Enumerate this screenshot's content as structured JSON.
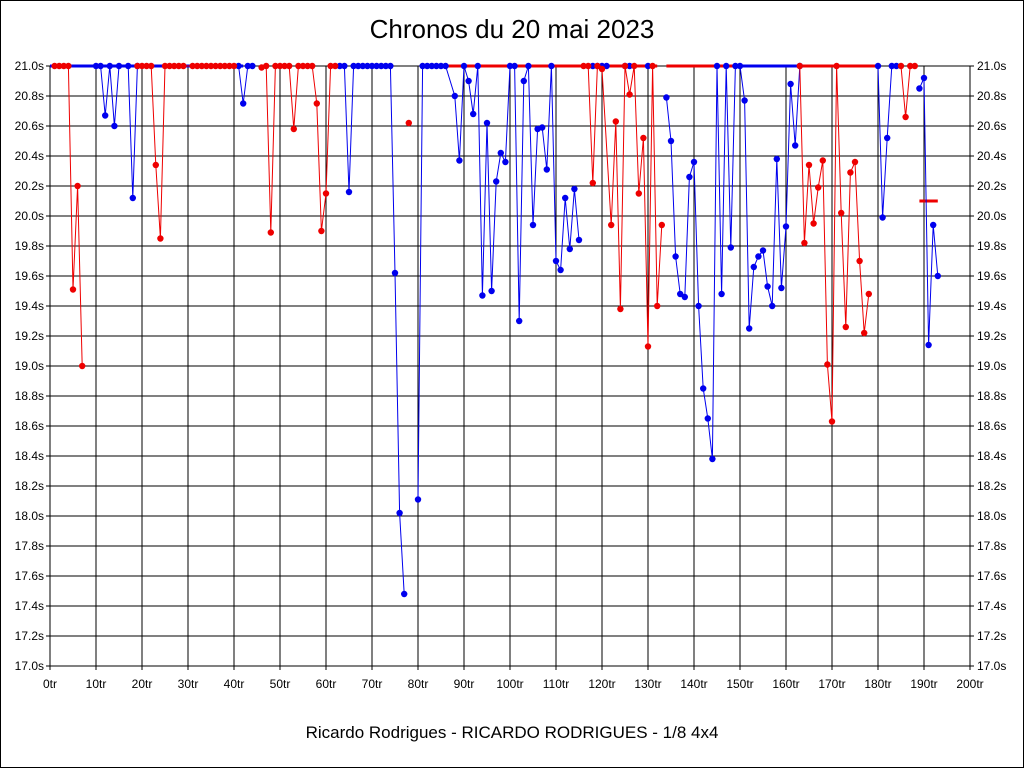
{
  "chart_data": {
    "type": "line",
    "title": "Chronos du 20 mai 2023",
    "subtitle": "Ricardo Rodrigues - RICARDO RODRIGUES - 1/8 4x4",
    "xlabel": "",
    "ylabel": "",
    "xlim": [
      0,
      200
    ],
    "ylim": [
      17.0,
      21.0
    ],
    "grid": true,
    "x_ticks": [
      "0tr",
      "10tr",
      "20tr",
      "30tr",
      "40tr",
      "50tr",
      "60tr",
      "70tr",
      "80tr",
      "90tr",
      "100tr",
      "110tr",
      "120tr",
      "130tr",
      "140tr",
      "150tr",
      "160tr",
      "170tr",
      "180tr",
      "190tr",
      "200tr"
    ],
    "y_ticks": [
      "21.0s",
      "20.8s",
      "20.6s",
      "20.4s",
      "20.2s",
      "20.0s",
      "19.8s",
      "19.6s",
      "19.4s",
      "19.2s",
      "19.0s",
      "18.8s",
      "18.6s",
      "18.4s",
      "18.2s",
      "18.0s",
      "17.8s",
      "17.6s",
      "17.4s",
      "17.2s",
      "17.0s"
    ],
    "colors": {
      "series_a": "#0000ee",
      "series_b": "#ee0000"
    },
    "series": [
      {
        "color": "#0000ee",
        "points": [
          [
            10,
            21.0
          ],
          [
            11,
            21.0
          ],
          [
            12,
            20.67
          ],
          [
            13,
            21.0
          ],
          [
            14,
            20.6
          ],
          [
            15,
            21.0
          ],
          [
            17,
            21.0
          ],
          [
            18,
            20.12
          ],
          [
            19,
            21.0
          ],
          [
            41,
            21.0
          ],
          [
            42,
            20.75
          ],
          [
            43,
            21.0
          ],
          [
            44,
            21.0
          ],
          [
            63,
            21.0
          ],
          [
            64,
            21.0
          ],
          [
            65,
            20.16
          ],
          [
            66,
            21.0
          ],
          [
            67,
            21.0
          ],
          [
            68,
            21.0
          ],
          [
            69,
            21.0
          ],
          [
            70,
            21.0
          ],
          [
            71,
            21.0
          ],
          [
            72,
            21.0
          ],
          [
            73,
            21.0
          ],
          [
            74,
            21.0
          ],
          [
            75,
            19.62
          ],
          [
            76,
            18.02
          ],
          [
            77,
            17.48
          ],
          [
            80,
            18.11
          ],
          [
            81,
            21.0
          ],
          [
            82,
            21.0
          ],
          [
            83,
            21.0
          ],
          [
            84,
            21.0
          ],
          [
            85,
            21.0
          ],
          [
            86,
            21.0
          ],
          [
            88,
            20.8
          ],
          [
            89,
            20.37
          ],
          [
            90,
            21.0
          ],
          [
            91,
            20.9
          ],
          [
            92,
            20.68
          ],
          [
            93,
            21.0
          ],
          [
            94,
            19.47
          ],
          [
            95,
            20.62
          ],
          [
            96,
            19.5
          ],
          [
            97,
            20.23
          ],
          [
            98,
            20.42
          ],
          [
            99,
            20.36
          ],
          [
            100,
            21.0
          ],
          [
            101,
            21.0
          ],
          [
            102,
            19.3
          ],
          [
            103,
            20.9
          ],
          [
            104,
            21.0
          ],
          [
            105,
            19.94
          ],
          [
            106,
            20.58
          ],
          [
            107,
            20.59
          ],
          [
            108,
            20.31
          ],
          [
            109,
            21.0
          ],
          [
            110,
            19.7
          ],
          [
            111,
            19.64
          ],
          [
            112,
            20.12
          ],
          [
            113,
            19.78
          ],
          [
            114,
            20.18
          ],
          [
            115,
            19.84
          ],
          [
            118,
            21.0
          ],
          [
            119,
            21.0
          ],
          [
            120,
            21.0
          ],
          [
            121,
            21.0
          ],
          [
            125,
            21.0
          ],
          [
            126,
            21.0
          ],
          [
            130,
            21.0
          ],
          [
            134,
            20.79
          ],
          [
            135,
            20.5
          ],
          [
            136,
            19.73
          ],
          [
            137,
            19.48
          ],
          [
            138,
            19.46
          ],
          [
            139,
            20.26
          ],
          [
            140,
            20.36
          ],
          [
            141,
            19.4
          ],
          [
            142,
            18.85
          ],
          [
            143,
            18.65
          ],
          [
            144,
            18.38
          ],
          [
            145,
            21.0
          ],
          [
            146,
            19.48
          ],
          [
            147,
            21.0
          ],
          [
            148,
            19.79
          ],
          [
            149,
            21.0
          ],
          [
            150,
            21.0
          ],
          [
            151,
            20.77
          ],
          [
            152,
            19.25
          ],
          [
            153,
            19.66
          ],
          [
            154,
            19.73
          ],
          [
            155,
            19.77
          ],
          [
            156,
            19.53
          ],
          [
            157,
            19.4
          ],
          [
            158,
            20.38
          ],
          [
            159,
            19.52
          ],
          [
            160,
            19.93
          ],
          [
            161,
            20.88
          ],
          [
            162,
            20.47
          ],
          [
            163,
            21.0
          ],
          [
            180,
            21.0
          ],
          [
            181,
            19.99
          ],
          [
            182,
            20.52
          ],
          [
            183,
            21.0
          ],
          [
            184,
            21.0
          ],
          [
            189,
            20.85
          ],
          [
            190,
            20.92
          ],
          [
            191,
            19.14
          ],
          [
            192,
            19.94
          ],
          [
            193,
            19.6
          ]
        ]
      },
      {
        "color": "#ee0000",
        "points": [
          [
            1,
            21.0
          ],
          [
            2,
            21.0
          ],
          [
            3,
            21.0
          ],
          [
            4,
            21.0
          ],
          [
            5,
            19.51
          ],
          [
            6,
            20.2
          ],
          [
            7,
            19.0
          ],
          [
            19,
            21.0
          ],
          [
            20,
            21.0
          ],
          [
            21,
            21.0
          ],
          [
            22,
            21.0
          ],
          [
            23,
            20.34
          ],
          [
            24,
            19.85
          ],
          [
            25,
            21.0
          ],
          [
            26,
            21.0
          ],
          [
            27,
            21.0
          ],
          [
            28,
            21.0
          ],
          [
            29,
            21.0
          ],
          [
            31,
            21.0
          ],
          [
            32,
            21.0
          ],
          [
            33,
            21.0
          ],
          [
            34,
            21.0
          ],
          [
            35,
            21.0
          ],
          [
            36,
            21.0
          ],
          [
            37,
            21.0
          ],
          [
            38,
            21.0
          ],
          [
            39,
            21.0
          ],
          [
            40,
            21.0
          ],
          [
            46,
            20.99
          ],
          [
            47,
            21.0
          ],
          [
            48,
            19.89
          ],
          [
            49,
            21.0
          ],
          [
            50,
            21.0
          ],
          [
            51,
            21.0
          ],
          [
            52,
            21.0
          ],
          [
            53,
            20.58
          ],
          [
            54,
            21.0
          ],
          [
            55,
            21.0
          ],
          [
            56,
            21.0
          ],
          [
            57,
            21.0
          ],
          [
            58,
            20.75
          ],
          [
            59,
            19.9
          ],
          [
            60,
            20.15
          ],
          [
            61,
            21.0
          ],
          [
            62,
            21.0
          ],
          [
            78,
            20.62
          ],
          [
            116,
            21.0
          ],
          [
            117,
            21.0
          ],
          [
            118,
            20.22
          ],
          [
            119,
            21.0
          ],
          [
            120,
            20.98
          ],
          [
            122,
            19.94
          ],
          [
            123,
            20.63
          ],
          [
            124,
            19.38
          ],
          [
            125,
            21.0
          ],
          [
            126,
            20.81
          ],
          [
            127,
            21.0
          ],
          [
            128,
            20.15
          ],
          [
            129,
            20.52
          ],
          [
            130,
            19.13
          ],
          [
            131,
            21.0
          ],
          [
            132,
            19.4
          ],
          [
            133,
            19.94
          ],
          [
            163,
            21.0
          ],
          [
            164,
            19.82
          ],
          [
            165,
            20.34
          ],
          [
            166,
            19.95
          ],
          [
            167,
            20.19
          ],
          [
            168,
            20.37
          ],
          [
            169,
            19.01
          ],
          [
            170,
            18.63
          ],
          [
            171,
            21.0
          ],
          [
            172,
            20.02
          ],
          [
            173,
            19.26
          ],
          [
            174,
            20.29
          ],
          [
            175,
            20.36
          ],
          [
            176,
            19.7
          ],
          [
            177,
            19.22
          ],
          [
            178,
            19.48
          ],
          [
            185,
            21.0
          ],
          [
            186,
            20.66
          ],
          [
            187,
            21.0
          ],
          [
            188,
            21.0
          ]
        ]
      }
    ]
  }
}
